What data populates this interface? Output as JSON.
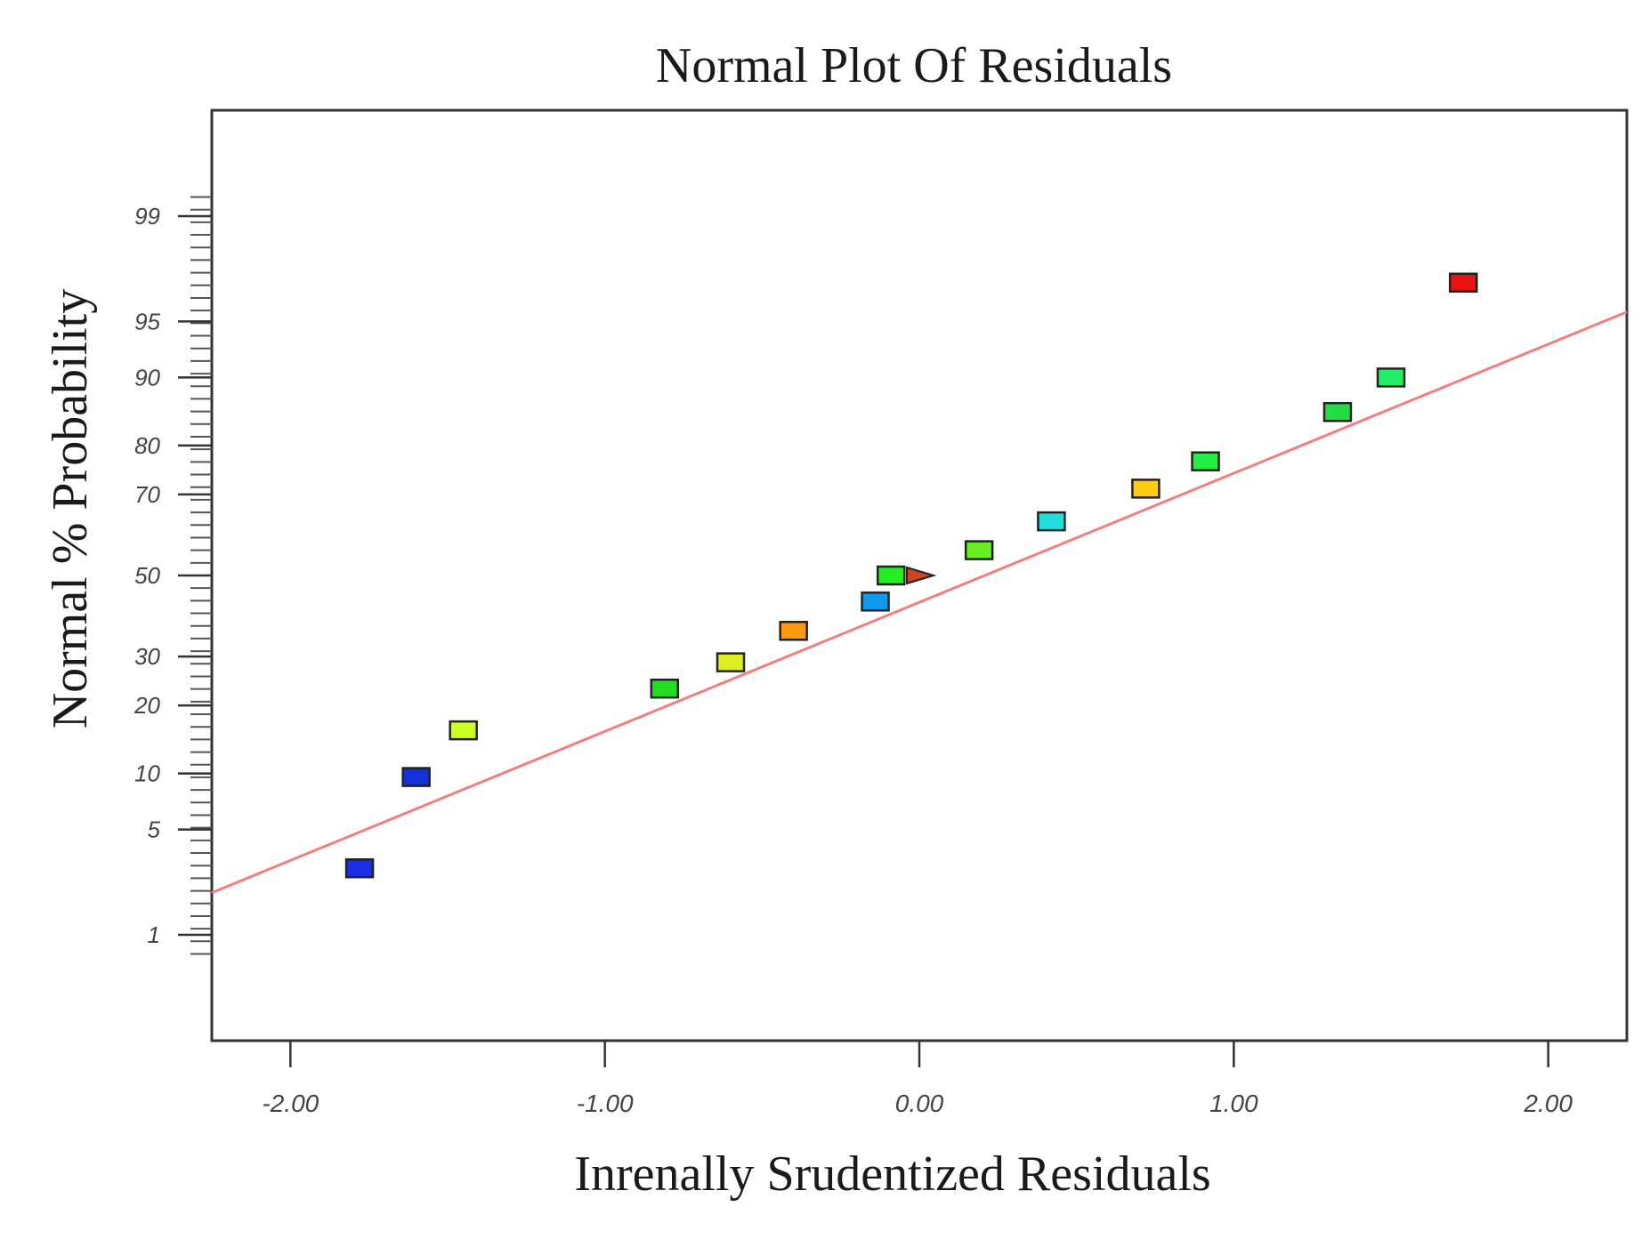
{
  "chart_data": {
    "type": "scatter",
    "title": "Normal Plot Of Residuals",
    "xlabel": "Inrenally Srudentized Residuals",
    "ylabel": "Normal % Probability",
    "xlim": [
      -2.25,
      2.25
    ],
    "ylim_prob": [
      0.13,
      99.87
    ],
    "x_ticks": [
      {
        "value": -2,
        "label": "-2.00"
      },
      {
        "value": -1,
        "label": "-1.00"
      },
      {
        "value": 0,
        "label": "0.00"
      },
      {
        "value": 1,
        "label": "1.00"
      },
      {
        "value": 2,
        "label": "2.00"
      }
    ],
    "y_ticks": [
      {
        "value": 1,
        "label": "1"
      },
      {
        "value": 5,
        "label": "5"
      },
      {
        "value": 10,
        "label": "10"
      },
      {
        "value": 20,
        "label": "20"
      },
      {
        "value": 30,
        "label": "30"
      },
      {
        "value": 50,
        "label": "50"
      },
      {
        "value": 70,
        "label": "70"
      },
      {
        "value": 80,
        "label": "80"
      },
      {
        "value": 90,
        "label": "90"
      },
      {
        "value": 95,
        "label": "95"
      },
      {
        "value": 99,
        "label": "99"
      }
    ],
    "points": [
      {
        "x": -1.78,
        "y": 2.9,
        "color": "#1a2ee8"
      },
      {
        "x": -1.6,
        "y": 9.6,
        "color": "#1530d8"
      },
      {
        "x": -1.45,
        "y": 15.8,
        "color": "#ccff22"
      },
      {
        "x": -0.81,
        "y": 23.2,
        "color": "#22dd22"
      },
      {
        "x": -0.6,
        "y": 28.7,
        "color": "#ddee22"
      },
      {
        "x": -0.4,
        "y": 36.0,
        "color": "#ff9911"
      },
      {
        "x": -0.14,
        "y": 43.3,
        "color": "#1199ee"
      },
      {
        "x": -0.09,
        "y": 50.0,
        "color": "#22ee22"
      },
      {
        "x": 0.0,
        "y": 50.0,
        "color": "#cc4422",
        "shape": "triangle"
      },
      {
        "x": 0.19,
        "y": 56.5,
        "color": "#66ee22"
      },
      {
        "x": 0.42,
        "y": 63.7,
        "color": "#22dddd"
      },
      {
        "x": 0.72,
        "y": 71.3,
        "color": "#ffcc11"
      },
      {
        "x": 0.91,
        "y": 77.0,
        "color": "#22ee44"
      },
      {
        "x": 1.33,
        "y": 85.5,
        "color": "#22dd44"
      },
      {
        "x": 1.5,
        "y": 90.0,
        "color": "#22ee66"
      },
      {
        "x": 1.73,
        "y": 97.1,
        "color": "#ee1111"
      }
    ],
    "fit_line": {
      "x1": -2.25,
      "y1": 2.0,
      "x2": 2.25,
      "y2": 95.6,
      "color": "#f08080"
    }
  }
}
